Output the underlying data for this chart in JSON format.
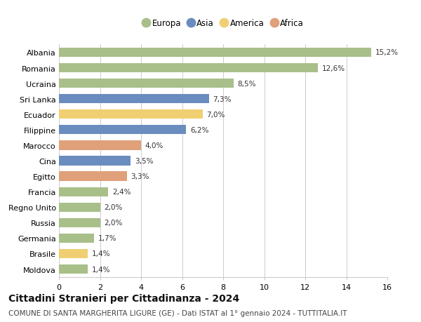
{
  "categories": [
    "Albania",
    "Romania",
    "Ucraina",
    "Sri Lanka",
    "Ecuador",
    "Filippine",
    "Marocco",
    "Cina",
    "Egitto",
    "Francia",
    "Regno Unito",
    "Russia",
    "Germania",
    "Brasile",
    "Moldova"
  ],
  "values": [
    15.2,
    12.6,
    8.5,
    7.3,
    7.0,
    6.2,
    4.0,
    3.5,
    3.3,
    2.4,
    2.0,
    2.0,
    1.7,
    1.4,
    1.4
  ],
  "labels": [
    "15,2%",
    "12,6%",
    "8,5%",
    "7,3%",
    "7,0%",
    "6,2%",
    "4,0%",
    "3,5%",
    "3,3%",
    "2,4%",
    "2,0%",
    "2,0%",
    "1,7%",
    "1,4%",
    "1,4%"
  ],
  "continents": [
    "Europa",
    "Europa",
    "Europa",
    "Asia",
    "America",
    "Asia",
    "Africa",
    "Asia",
    "Africa",
    "Europa",
    "Europa",
    "Europa",
    "Europa",
    "America",
    "Europa"
  ],
  "continent_colors": {
    "Europa": "#a8bf8a",
    "Asia": "#6b8cbf",
    "America": "#f0cf72",
    "Africa": "#e0a07a"
  },
  "legend_order": [
    "Europa",
    "Asia",
    "America",
    "Africa"
  ],
  "xlim": [
    0,
    16
  ],
  "xticks": [
    0,
    2,
    4,
    6,
    8,
    10,
    12,
    14,
    16
  ],
  "title": "Cittadini Stranieri per Cittadinanza - 2024",
  "subtitle": "COMUNE DI SANTA MARGHERITA LIGURE (GE) - Dati ISTAT al 1° gennaio 2024 - TUTTITALIA.IT",
  "title_fontsize": 10,
  "subtitle_fontsize": 7.5,
  "bg_color": "#ffffff",
  "grid_color": "#cccccc",
  "bar_height": 0.6
}
